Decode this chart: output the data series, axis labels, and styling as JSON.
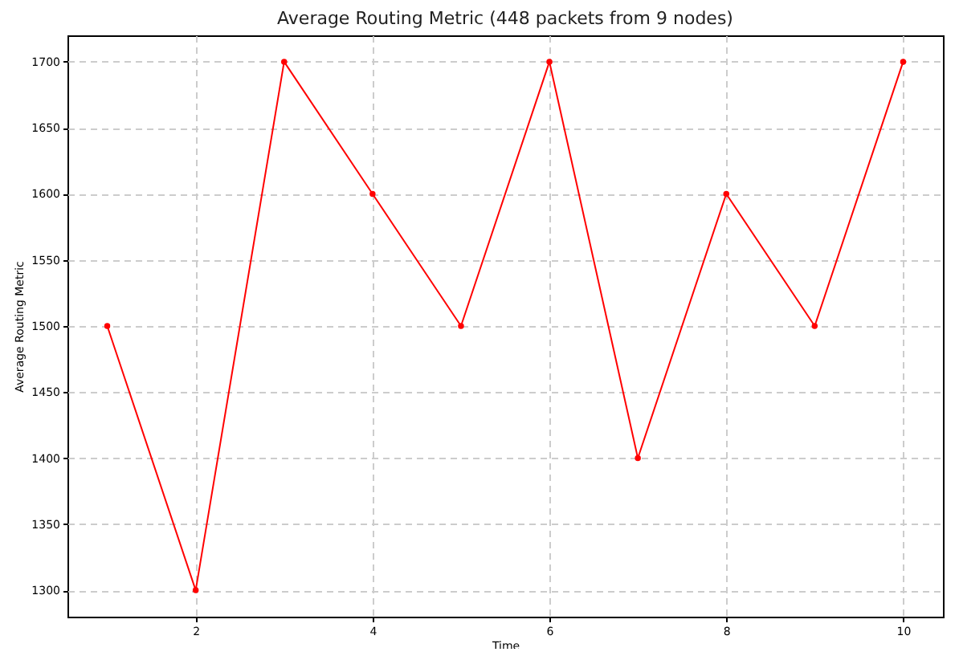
{
  "chart_data": {
    "type": "line",
    "title": "Average Routing Metric (448 packets from 9 nodes)",
    "xlabel": "Time",
    "ylabel": "Average Routing Metric",
    "x": [
      1,
      2,
      3,
      4,
      5,
      6,
      7,
      8,
      9,
      10
    ],
    "series": [
      {
        "color": "#ff0000",
        "values": [
          1500,
          1300,
          1700,
          1600,
          1500,
          1700,
          1400,
          1600,
          1500,
          1700
        ]
      }
    ],
    "xlim": [
      0.55,
      10.45
    ],
    "xticks": [
      2,
      4,
      6,
      8,
      10
    ],
    "ylim": [
      1280,
      1720
    ],
    "yticks": [
      1300,
      1350,
      1400,
      1450,
      1500,
      1550,
      1600,
      1650,
      1700
    ],
    "grid": true,
    "marker": "circle",
    "line_style": "solid"
  }
}
